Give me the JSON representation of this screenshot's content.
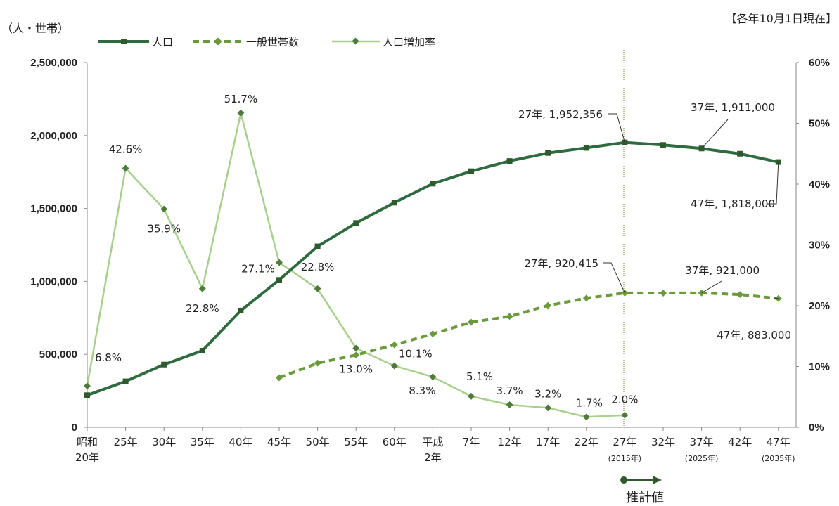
{
  "header": {
    "left_unit": "（人・世帯）",
    "as_of": "【各年10月1日現在】"
  },
  "legend": {
    "population": "人口",
    "households": "一般世帯数",
    "growth_rate": "人口増加率"
  },
  "forecast_label": "推計値",
  "colors": {
    "population": "#2e6b3f",
    "households": "#6a9a3c",
    "growth_rate": "#a8d08d",
    "marker_dark": "#2e5a2e",
    "forecast_line": "#6b8e23"
  },
  "chart_data": {
    "type": "line",
    "categories": [
      [
        "昭和",
        "20年"
      ],
      [
        "25年"
      ],
      [
        "30年"
      ],
      [
        "35年"
      ],
      [
        "40年"
      ],
      [
        "45年"
      ],
      [
        "50年"
      ],
      [
        "55年"
      ],
      [
        "60年"
      ],
      [
        "平成",
        "2年"
      ],
      [
        "7年"
      ],
      [
        "12年"
      ],
      [
        "17年"
      ],
      [
        "22年"
      ],
      [
        "27年",
        "(2015年)"
      ],
      [
        "32年"
      ],
      [
        "37年",
        "(2025年)"
      ],
      [
        "42年"
      ],
      [
        "47年",
        "(2035年)"
      ]
    ],
    "y_left": {
      "min": 0,
      "max": 2500000,
      "ticks": [
        "0",
        "500,000",
        "1,000,000",
        "1,500,000",
        "2,000,000",
        "2,500,000"
      ]
    },
    "y_right": {
      "min": 0,
      "max": 60,
      "ticks": [
        "0%",
        "10%",
        "20%",
        "30%",
        "40%",
        "50%",
        "60%"
      ]
    },
    "series": [
      {
        "name": "人口",
        "axis": "left",
        "values": [
          220000,
          315000,
          430000,
          525000,
          800000,
          1010000,
          1240000,
          1400000,
          1540000,
          1670000,
          1755000,
          1825000,
          1880000,
          1915000,
          1952356,
          1935000,
          1911000,
          1875000,
          1818000
        ]
      },
      {
        "name": "一般世帯数",
        "axis": "left",
        "values": [
          null,
          null,
          null,
          null,
          null,
          340000,
          440000,
          495000,
          565000,
          640000,
          720000,
          760000,
          835000,
          885000,
          920415,
          920000,
          921000,
          910000,
          883000
        ]
      },
      {
        "name": "人口増加率",
        "axis": "right",
        "values": [
          6.8,
          42.6,
          35.9,
          22.8,
          51.7,
          27.1,
          22.8,
          13.0,
          10.1,
          8.3,
          5.1,
          3.7,
          3.2,
          1.7,
          2.0,
          null,
          null,
          null,
          null
        ]
      }
    ],
    "rate_labels": [
      "6.8%",
      "42.6%",
      "35.9%",
      "22.8%",
      "51.7%",
      "27.1%",
      "22.8%",
      "13.0%",
      "10.1%",
      "8.3%",
      "5.1%",
      "3.7%",
      "3.2%",
      "1.7%",
      "2.0%"
    ],
    "callouts": {
      "pop_27": "27年, 1,952,356",
      "pop_37": "37年, 1,911,000",
      "pop_47": "47年, 1,818,000",
      "hh_27": "27年, 920,415",
      "hh_37": "37年, 921,000",
      "hh_47": "47年, 883,000"
    }
  }
}
